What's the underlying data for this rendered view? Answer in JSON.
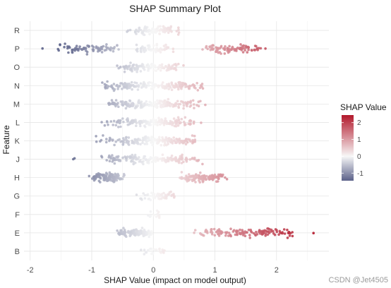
{
  "chart_data": {
    "type": "scatter",
    "title": "SHAP Summary Plot",
    "xlabel": "SHAP Value (impact on model output)",
    "ylabel": "Feature",
    "xlim": [
      -2.1,
      2.85
    ],
    "x_ticks": [
      -2,
      -1,
      0,
      1,
      2
    ],
    "features": [
      "R",
      "P",
      "O",
      "N",
      "M",
      "L",
      "K",
      "J",
      "H",
      "G",
      "F",
      "E",
      "B"
    ],
    "grid": true,
    "color_scale": {
      "title": "SHAP Value",
      "ticks": [
        2,
        1,
        0,
        -1
      ],
      "min": -1.45,
      "max": 2.45,
      "low_color": "#5b6189",
      "mid_color": "#f7f7f7",
      "high_color": "#b2182b"
    },
    "series": [
      {
        "feature": "R",
        "clusters": [
          {
            "center": 0.0,
            "spread": 0.47,
            "count": 90
          }
        ]
      },
      {
        "feature": "P",
        "clusters": [
          {
            "center": -1.05,
            "spread": 0.52,
            "count": 80
          },
          {
            "center": 0.0,
            "spread": 0.35,
            "count": 50
          },
          {
            "center": 1.25,
            "spread": 0.55,
            "count": 90
          }
        ],
        "outliers": [
          -1.8,
          1.82
        ]
      },
      {
        "feature": "O",
        "clusters": [
          {
            "center": -0.05,
            "spread": 0.6,
            "count": 110
          }
        ]
      },
      {
        "feature": "N",
        "clusters": [
          {
            "center": 0.0,
            "spread": 0.88,
            "count": 170
          }
        ]
      },
      {
        "feature": "M",
        "clusters": [
          {
            "center": 0.0,
            "spread": 0.9,
            "count": 170
          }
        ]
      },
      {
        "feature": "L",
        "clusters": [
          {
            "center": -0.05,
            "spread": 0.85,
            "count": 160
          }
        ]
      },
      {
        "feature": "K",
        "clusters": [
          {
            "center": -0.05,
            "spread": 0.95,
            "count": 170
          }
        ]
      },
      {
        "feature": "J",
        "clusters": [
          {
            "center": -0.05,
            "spread": 0.9,
            "count": 160
          }
        ],
        "outliers": [
          -1.3,
          -1.28
        ]
      },
      {
        "feature": "H",
        "clusters": [
          {
            "center": -0.75,
            "spread": 0.32,
            "count": 110
          },
          {
            "center": 0.8,
            "spread": 0.42,
            "count": 130
          }
        ]
      },
      {
        "feature": "G",
        "clusters": [
          {
            "center": 0.05,
            "spread": 0.38,
            "count": 50
          }
        ]
      },
      {
        "feature": "F",
        "clusters": [
          {
            "center": 0.0,
            "spread": 0.15,
            "count": 12
          }
        ]
      },
      {
        "feature": "E",
        "clusters": [
          {
            "center": -0.3,
            "spread": 0.32,
            "count": 110
          },
          {
            "center": 1.5,
            "spread": 0.85,
            "count": 130
          }
        ],
        "outliers": [
          2.6
        ]
      },
      {
        "feature": "B",
        "clusters": [
          {
            "center": 0.0,
            "spread": 0.22,
            "count": 22
          }
        ]
      }
    ]
  },
  "watermark": "CSDN @Jet4505"
}
